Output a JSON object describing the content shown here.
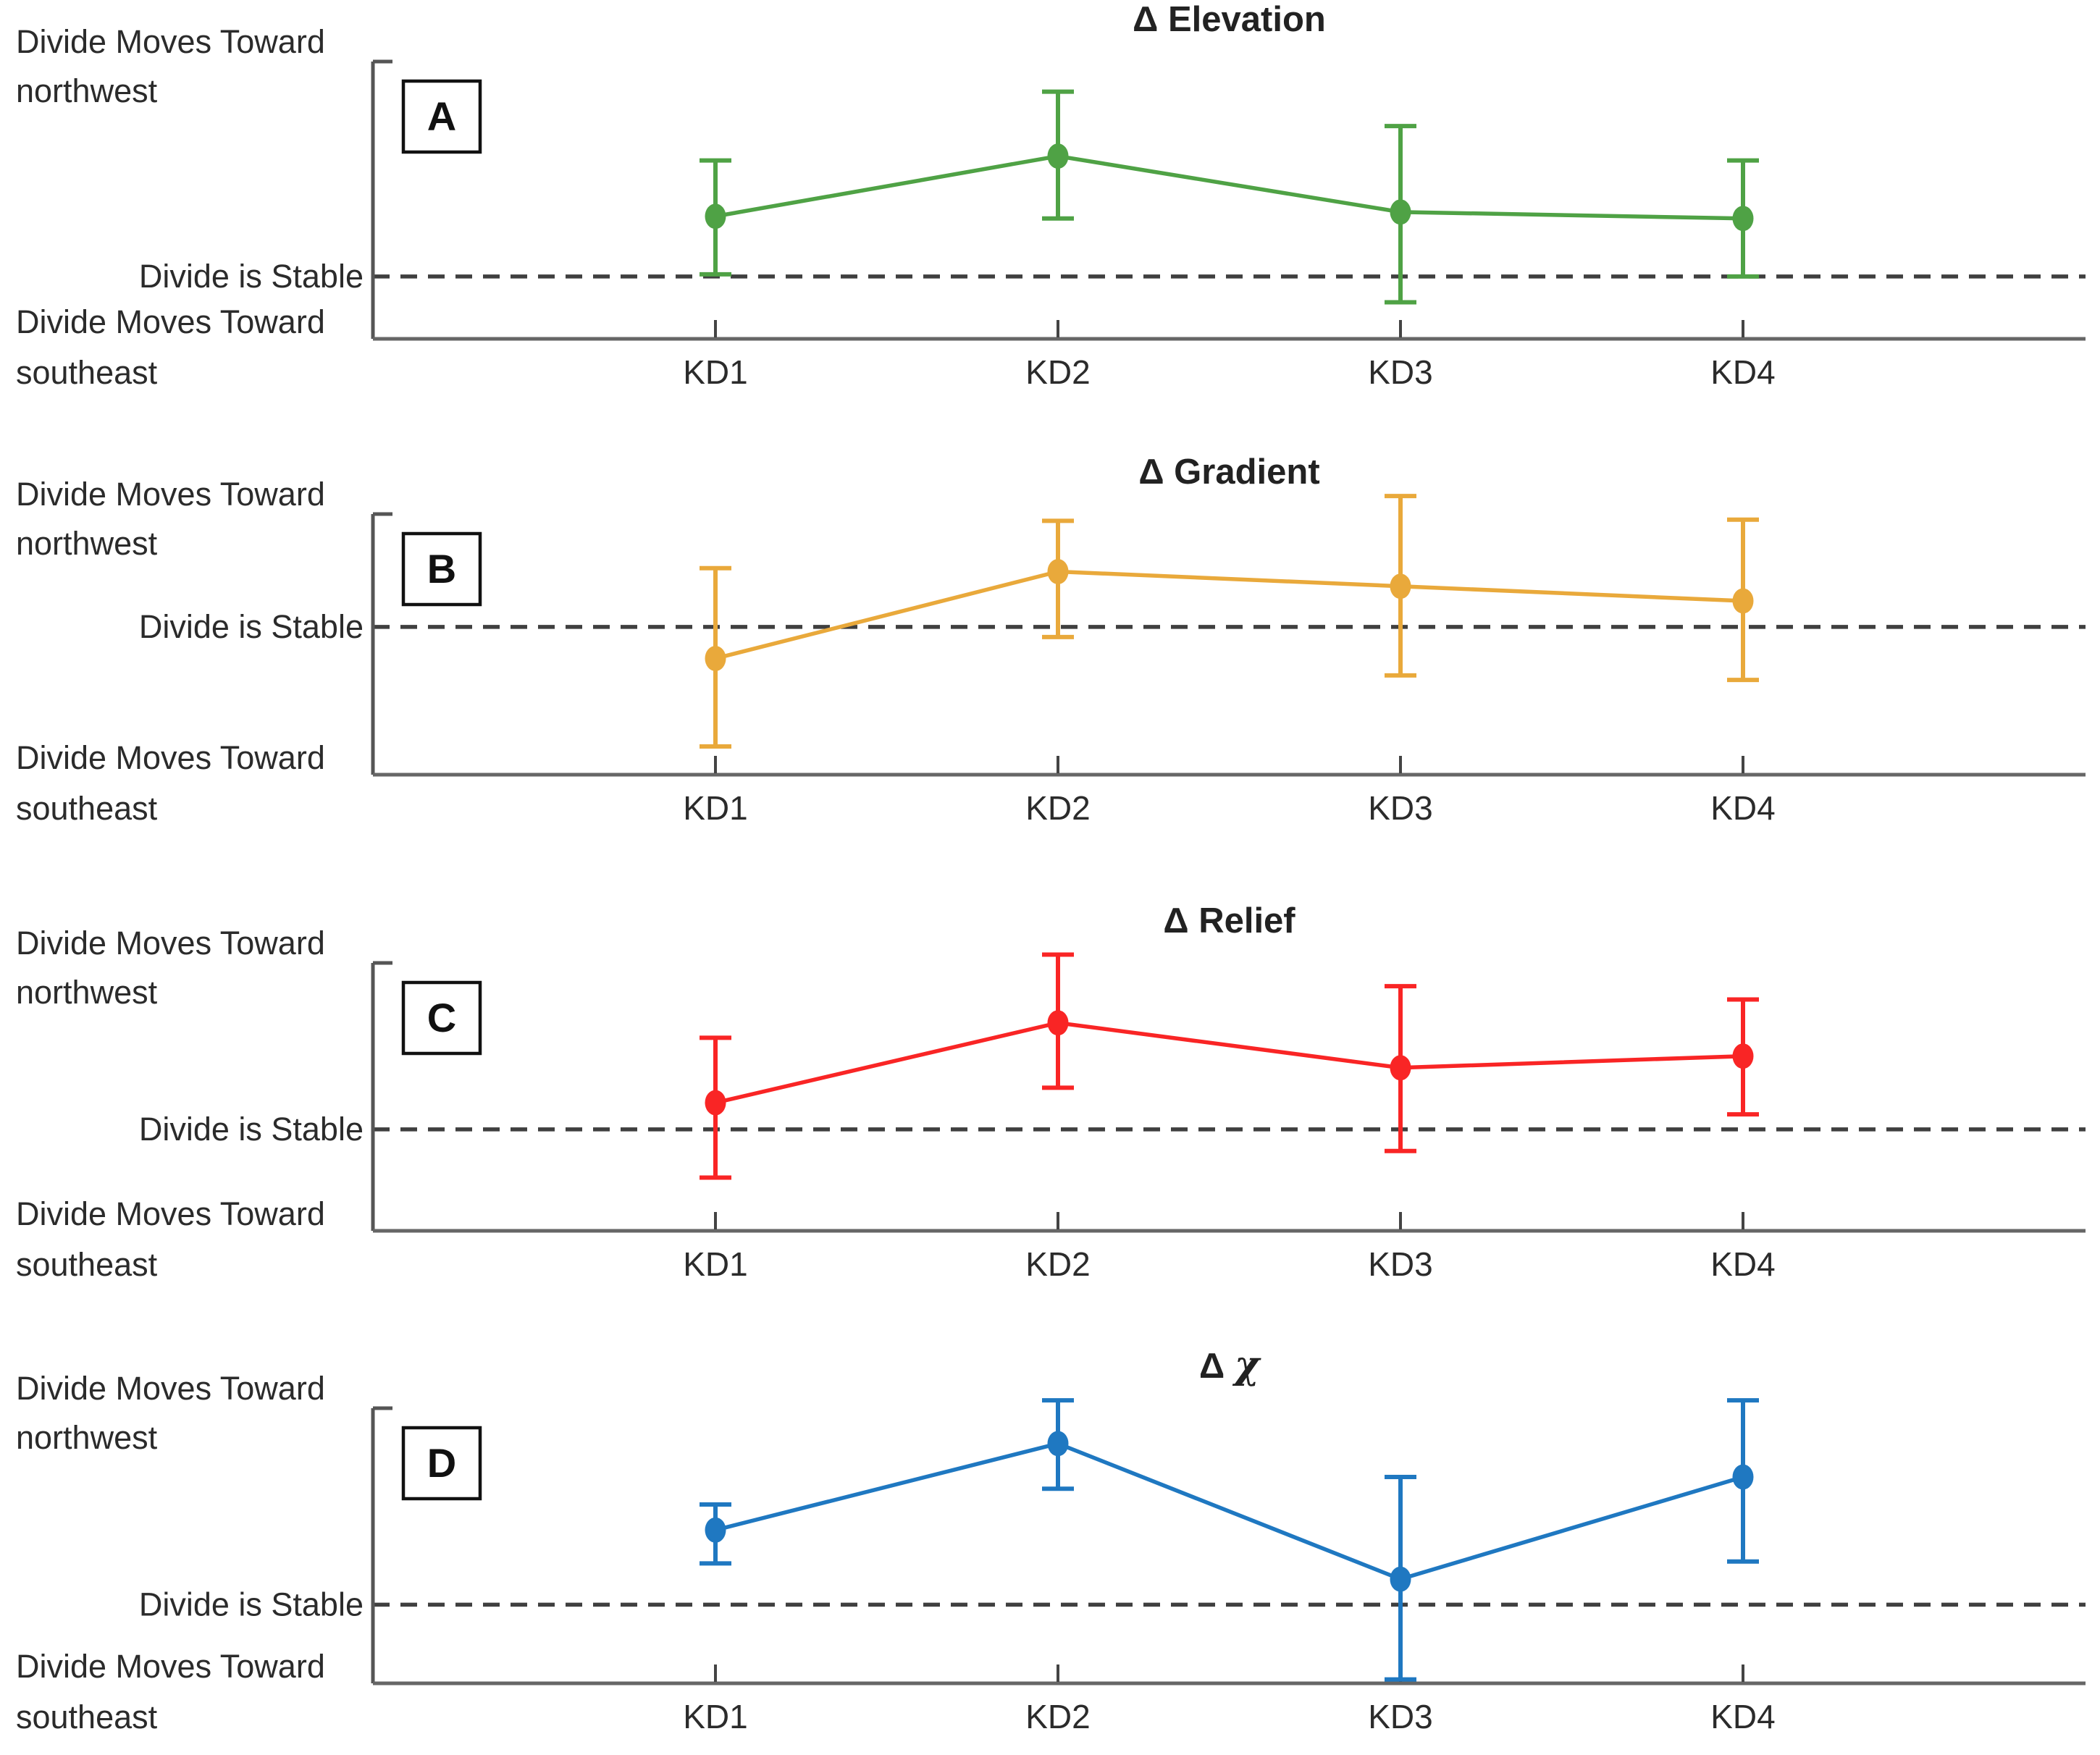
{
  "figure": {
    "background": "#ffffff",
    "text_color": "#2b2b2b",
    "dashed_line_color": "#3f3f3f",
    "axis_color": "#666666",
    "spine_color": "#555555",
    "tick_color": "#444444"
  },
  "left_labels": {
    "top_line1": "Divide Moves Toward",
    "top_line2": "northwest",
    "stable": "Divide is Stable",
    "bottom_line1": "Divide Moves Toward",
    "bottom_line2": "southeast"
  },
  "x_categories": [
    "KD1",
    "KD2",
    "KD3",
    "KD4"
  ],
  "chart_data": [
    {
      "type": "line",
      "panel_label": "A",
      "title": "Δ Elevation",
      "color": "#4fa245",
      "categories": [
        "KD1",
        "KD2",
        "KD3",
        "KD4"
      ],
      "values": [
        0.28,
        0.56,
        0.3,
        0.27
      ],
      "err_hi": [
        0.54,
        0.86,
        0.7,
        0.54
      ],
      "err_lo": [
        0.01,
        0.27,
        -0.12,
        0.0
      ],
      "ylim": [
        -0.29,
        1.0
      ],
      "baseline_value": 0,
      "baseline_meaning": "Divide is Stable; positive = toward northwest, negative = toward southeast",
      "grid": false,
      "legend": "none"
    },
    {
      "type": "line",
      "panel_label": "B",
      "title": "Δ Gradient",
      "color": "#e9a93b",
      "categories": [
        "KD1",
        "KD2",
        "KD3",
        "KD4"
      ],
      "values": [
        -0.28,
        0.49,
        0.36,
        0.23
      ],
      "err_hi": [
        0.52,
        0.94,
        1.16,
        0.95
      ],
      "err_lo": [
        -1.06,
        -0.09,
        -0.43,
        -0.47
      ],
      "ylim": [
        -1.31,
        1.0
      ],
      "baseline_value": 0,
      "baseline_meaning": "Divide is Stable; positive = toward northwest, negative = toward southeast",
      "grid": false,
      "legend": "none"
    },
    {
      "type": "line",
      "panel_label": "C",
      "title": "Δ Relief",
      "color": "#f92525",
      "categories": [
        "KD1",
        "KD2",
        "KD3",
        "KD4"
      ],
      "values": [
        0.16,
        0.64,
        0.37,
        0.44
      ],
      "err_hi": [
        0.55,
        1.05,
        0.86,
        0.78
      ],
      "err_lo": [
        -0.29,
        0.25,
        -0.13,
        0.09
      ],
      "ylim": [
        -0.61,
        1.0
      ],
      "baseline_value": 0,
      "baseline_meaning": "Divide is Stable; positive = toward northwest, negative = toward southeast",
      "grid": false,
      "legend": "none"
    },
    {
      "type": "line",
      "panel_label": "D",
      "title": "Δ χ",
      "color": "#1f78c1",
      "categories": [
        "KD1",
        "KD2",
        "KD3",
        "KD4"
      ],
      "values": [
        0.38,
        0.82,
        0.13,
        0.65
      ],
      "err_hi": [
        0.51,
        1.04,
        0.65,
        1.04
      ],
      "err_lo": [
        0.21,
        0.59,
        -0.38,
        0.22
      ],
      "ylim": [
        -0.4,
        1.0
      ],
      "baseline_value": 0,
      "baseline_meaning": "Divide is Stable; positive = toward northwest, negative = toward southeast",
      "grid": false,
      "legend": "none"
    }
  ]
}
